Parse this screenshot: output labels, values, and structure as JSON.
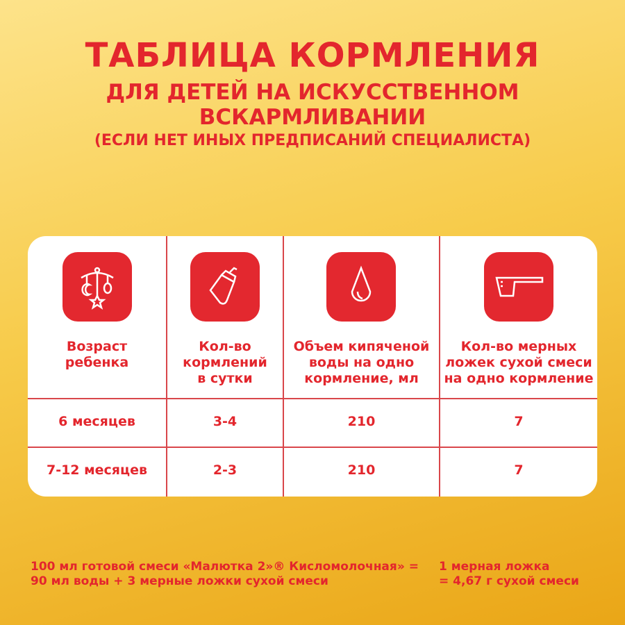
{
  "title": "ТАБЛИЦА КОРМЛЕНИЯ",
  "subtitle_1": "ДЛЯ ДЕТЕЙ НА ИСКУССТВЕННОМ",
  "subtitle_2": "ВСКАРМЛИВАНИИ",
  "note": "(ЕСЛИ НЕТ ИНЫХ ПРЕДПИСАНИЙ СПЕЦИАЛИСТА)",
  "table": {
    "columns": [
      {
        "icon": "baby-mobile-icon",
        "l1": "Возраст",
        "l2": "ребенка",
        "l3": ""
      },
      {
        "icon": "baby-bottle-icon",
        "l1": "Кол-во",
        "l2": "кормлений",
        "l3": "в сутки"
      },
      {
        "icon": "water-drop-icon",
        "l1": "Объем кипяченой",
        "l2": "воды на одно",
        "l3": "кормление, мл"
      },
      {
        "icon": "measuring-scoop-icon",
        "l1": "Кол-во мерных",
        "l2": "ложек сухой смеси",
        "l3": "на одно кормление"
      }
    ],
    "rows": [
      [
        "6 месяцев",
        "3-4",
        "210",
        "7"
      ],
      [
        "7-12 месяцев",
        "2-3",
        "210",
        "7"
      ]
    ]
  },
  "footer": {
    "left_1": "100 мл готовой смеси «Малютка 2»® Кисломолочная» =",
    "left_2": "90 мл воды + 3 мерные ложки сухой смеси",
    "right_1": "1 мерная ложка",
    "right_2": "= 4,67 г сухой смеси"
  },
  "colors": {
    "accent": "#e3262d",
    "background": "#f7cb4a"
  }
}
